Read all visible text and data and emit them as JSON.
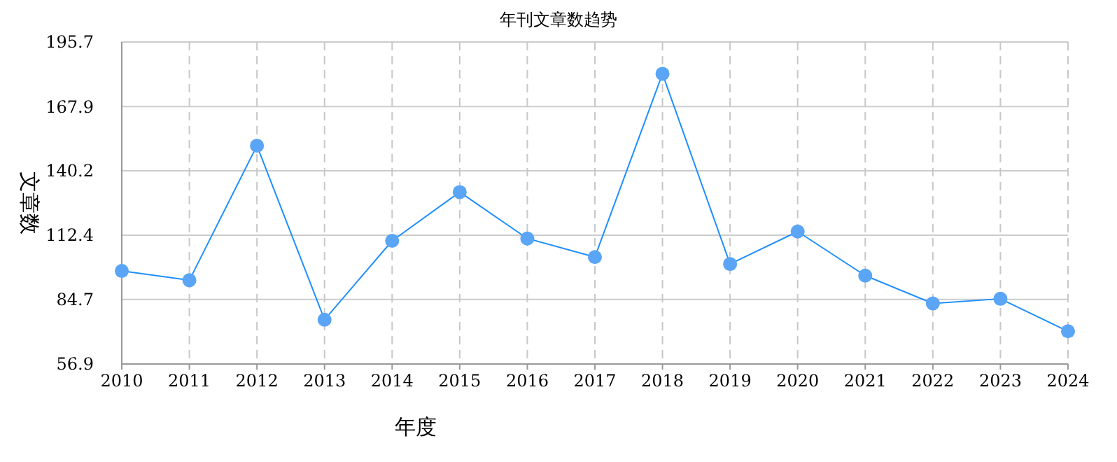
{
  "chart_data": {
    "type": "line",
    "title": "年刊文章数趋势",
    "xlabel": "年度",
    "ylabel": "文章数",
    "categories": [
      "2010",
      "2011",
      "2012",
      "2013",
      "2014",
      "2015",
      "2016",
      "2017",
      "2018",
      "2019",
      "2020",
      "2021",
      "2022",
      "2023",
      "2024"
    ],
    "series": [
      {
        "color": "#1e8fff",
        "values": [
          97,
          93,
          151,
          76,
          110,
          131,
          111,
          103,
          182,
          100,
          114,
          95,
          83,
          85,
          71
        ]
      }
    ],
    "ylim": [
      56.9,
      195.7
    ],
    "yticks": [
      56.9,
      84.7,
      112.4,
      140.2,
      167.9,
      195.7
    ],
    "grid": true,
    "marker": "circle",
    "line_style": "solid"
  }
}
